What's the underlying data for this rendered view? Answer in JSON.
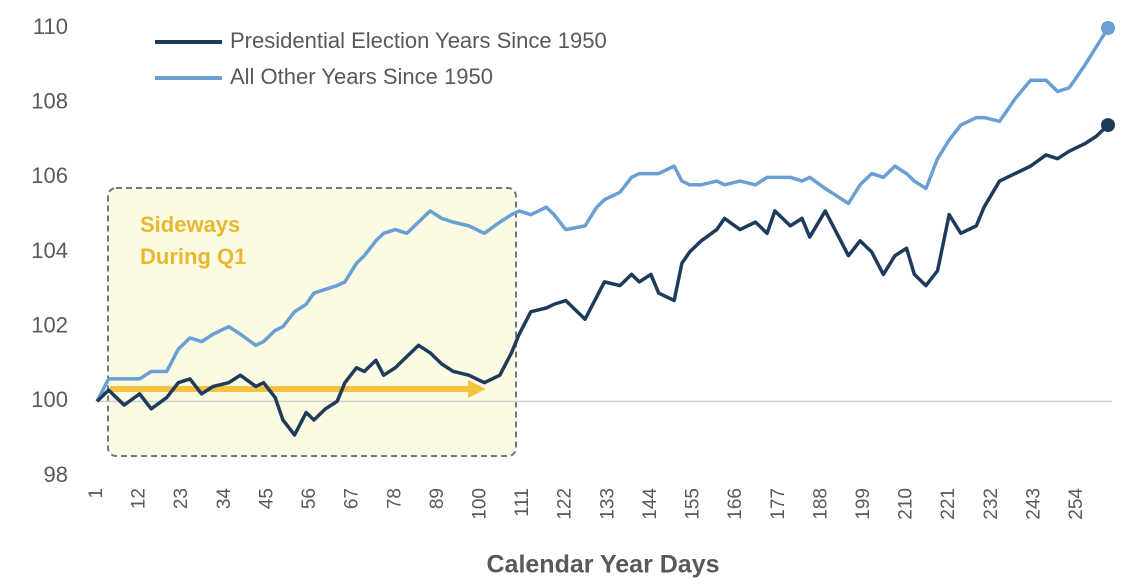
{
  "chart_data": {
    "type": "line",
    "legend_labels_note_free": null,
    "annotation": [
      "Sideways",
      "During Q1"
    ],
    "xlabel": "Calendar Year Days",
    "x": [
      1,
      4,
      8,
      12,
      15,
      19,
      22,
      25,
      28,
      31,
      35,
      38,
      42,
      44,
      47,
      49,
      52,
      55,
      57,
      60,
      63,
      65,
      68,
      70,
      73,
      75,
      78,
      81,
      84,
      87,
      90,
      93,
      97,
      101,
      105,
      108,
      110,
      113,
      117,
      119,
      122,
      127,
      130,
      132,
      136,
      139,
      141,
      144,
      146,
      150,
      152,
      154,
      157,
      161,
      163,
      167,
      171,
      174,
      176,
      180,
      183,
      185,
      189,
      192,
      195,
      198,
      201,
      204,
      207,
      210,
      212,
      215,
      218,
      221,
      224,
      228,
      230,
      234,
      238,
      242,
      246,
      249,
      252,
      256,
      259,
      262
    ],
    "series": [
      {
        "name": "Presidential Election Years Since 1950",
        "color": "#1f3b5c",
        "values": [
          100,
          100.3,
          99.9,
          100.2,
          99.8,
          100.1,
          100.5,
          100.6,
          100.2,
          100.4,
          100.5,
          100.7,
          100.4,
          100.5,
          100.1,
          99.5,
          99.1,
          99.7,
          99.5,
          99.8,
          100.0,
          100.5,
          100.9,
          100.8,
          101.1,
          100.7,
          100.9,
          101.2,
          101.5,
          101.3,
          101.0,
          100.8,
          100.7,
          100.5,
          100.7,
          101.3,
          101.8,
          102.4,
          102.5,
          102.6,
          102.7,
          102.2,
          102.8,
          103.2,
          103.1,
          103.4,
          103.2,
          103.4,
          102.9,
          102.7,
          103.7,
          104.0,
          104.3,
          104.6,
          104.9,
          104.6,
          104.8,
          104.5,
          105.1,
          104.7,
          104.9,
          104.4,
          105.1,
          104.5,
          103.9,
          104.3,
          104.0,
          103.4,
          103.9,
          104.1,
          103.4,
          103.1,
          103.5,
          105.0,
          104.5,
          104.7,
          105.2,
          105.9,
          106.1,
          106.3,
          106.6,
          106.5,
          106.7,
          106.9,
          107.1,
          107.4
        ]
      },
      {
        "name": "All Other Years Since 1950",
        "color": "#6a9fd4",
        "values": [
          100,
          100.6,
          100.6,
          100.6,
          100.8,
          100.8,
          101.4,
          101.7,
          101.6,
          101.8,
          102.0,
          101.8,
          101.5,
          101.6,
          101.9,
          102.0,
          102.4,
          102.6,
          102.9,
          103.0,
          103.1,
          103.2,
          103.7,
          103.9,
          104.3,
          104.5,
          104.6,
          104.5,
          104.8,
          105.1,
          104.9,
          104.8,
          104.7,
          104.5,
          104.8,
          105.0,
          105.1,
          105.0,
          105.2,
          105.0,
          104.6,
          104.7,
          105.2,
          105.4,
          105.6,
          106.0,
          106.1,
          106.1,
          106.1,
          106.3,
          105.9,
          105.8,
          105.8,
          105.9,
          105.8,
          105.9,
          105.8,
          106.0,
          106.0,
          106.0,
          105.9,
          106.0,
          105.7,
          105.5,
          105.3,
          105.8,
          106.1,
          106.0,
          106.3,
          106.1,
          105.9,
          105.7,
          106.5,
          107.0,
          107.4,
          107.6,
          107.6,
          107.5,
          108.1,
          108.6,
          108.6,
          108.3,
          108.4,
          109.0,
          109.5,
          110.0
        ]
      }
    ],
    "xlim": [
      1,
      262
    ],
    "xticks": [
      1,
      12,
      23,
      34,
      45,
      56,
      67,
      78,
      89,
      100,
      111,
      122,
      133,
      144,
      155,
      166,
      177,
      188,
      199,
      210,
      221,
      232,
      243,
      254
    ],
    "ylim": [
      98,
      110
    ],
    "yticks": [
      98,
      100,
      102,
      104,
      106,
      108,
      110
    ],
    "reference_line": 100,
    "end_markers": true
  }
}
